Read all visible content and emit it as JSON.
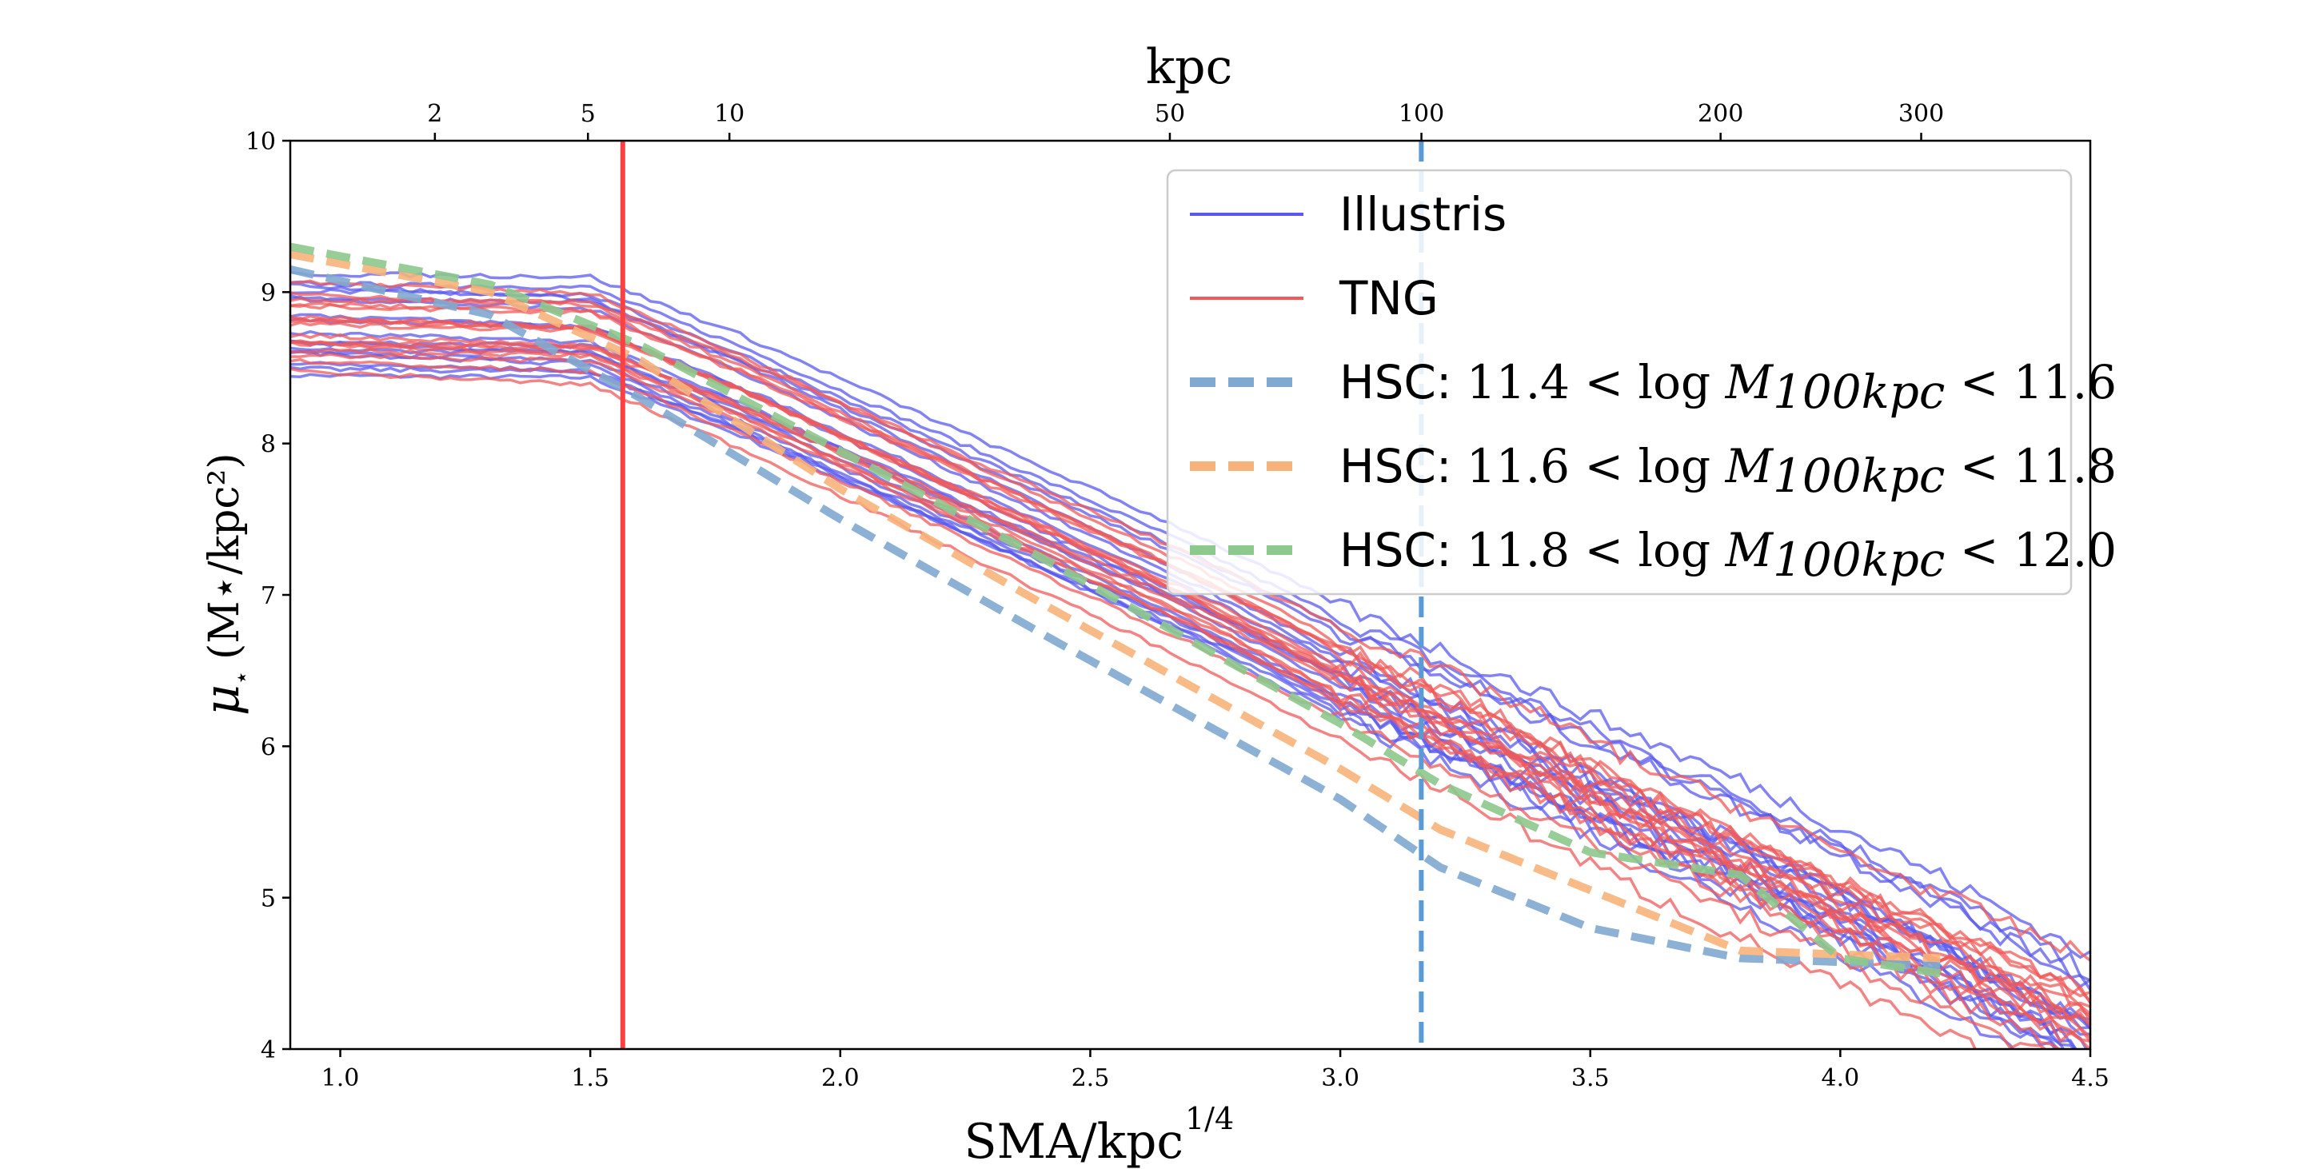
{
  "chart_data": {
    "type": "line",
    "title": "",
    "xlabel": "SMA/kpc",
    "xlabel_sup": "1/4",
    "ylabel": "μ",
    "ylabel_units": "(M⋆/kpc²)",
    "top_xlabel": "kpc",
    "xlim": [
      0.9,
      4.5
    ],
    "ylim": [
      4,
      10
    ],
    "x_ticks": [
      "1.0",
      "1.5",
      "2.0",
      "2.5",
      "3.0",
      "3.5",
      "4.0",
      "4.5"
    ],
    "y_ticks": [
      "4",
      "5",
      "6",
      "7",
      "8",
      "9",
      "10"
    ],
    "top_ticks": [
      {
        "label": "2",
        "kpc": 2
      },
      {
        "label": "5",
        "kpc": 5
      },
      {
        "label": "10",
        "kpc": 10
      },
      {
        "label": "50",
        "kpc": 50
      },
      {
        "label": "100",
        "kpc": 100
      },
      {
        "label": "200",
        "kpc": 200
      },
      {
        "label": "300",
        "kpc": 300
      }
    ],
    "vlines": [
      {
        "x": 1.565,
        "color": "#ff4040",
        "style": "solid"
      },
      {
        "x": 3.162,
        "color": "#5b9bd5",
        "style": "dashed"
      }
    ],
    "legend": {
      "position": "top-right",
      "entries": [
        {
          "text": "Illustris",
          "color": "#5a5af0",
          "style": "solid"
        },
        {
          "text": "TNG",
          "color": "#f05a5a",
          "style": "solid"
        },
        {
          "prefix": "HSC:",
          "lo": "11.4",
          "hi": "11.6",
          "color": "#7fa9d0",
          "style": "dashed"
        },
        {
          "prefix": "HSC:",
          "lo": "11.6",
          "hi": "11.8",
          "color": "#f7b37a",
          "style": "dashed"
        },
        {
          "prefix": "HSC:",
          "lo": "11.8",
          "hi": "12.0",
          "color": "#8dc88d",
          "style": "dashed"
        }
      ]
    },
    "series": [
      {
        "group": "HSC: 11.4 < log M100kpc < 11.6",
        "color": "#7fa9d0",
        "x": [
          0.9,
          1.3,
          1.6,
          2.0,
          2.4,
          2.7,
          3.0,
          3.2,
          3.5,
          3.8,
          4.2
        ],
        "y": [
          9.15,
          8.85,
          8.3,
          7.5,
          6.75,
          6.2,
          5.65,
          5.2,
          4.8,
          4.6,
          4.55
        ]
      },
      {
        "group": "HSC: 11.6 < log M100kpc < 11.8",
        "color": "#f7b37a",
        "x": [
          0.9,
          1.3,
          1.6,
          2.0,
          2.4,
          2.7,
          3.0,
          3.2,
          3.5,
          3.8,
          4.2
        ],
        "y": [
          9.25,
          9.0,
          8.55,
          7.7,
          6.95,
          6.4,
          5.85,
          5.45,
          5.05,
          4.65,
          4.6
        ]
      },
      {
        "group": "HSC: 11.8 < log M100kpc < 12.0",
        "color": "#8dc88d",
        "x": [
          0.9,
          1.3,
          1.6,
          2.0,
          2.4,
          2.7,
          3.0,
          3.2,
          3.5,
          3.8,
          4.0,
          4.2
        ],
        "y": [
          9.3,
          9.05,
          8.65,
          7.95,
          7.25,
          6.7,
          6.15,
          5.75,
          5.3,
          5.15,
          4.6,
          4.5
        ]
      }
    ],
    "simulation_bundles": [
      {
        "group": "Illustris",
        "color": "#5a5af0",
        "median_x": [
          0.9,
          1.5,
          1.8,
          2.1,
          2.4,
          2.7,
          3.0,
          3.3,
          3.6,
          3.9,
          4.2,
          4.5
        ],
        "median_y": [
          8.8,
          8.75,
          8.35,
          7.9,
          7.45,
          7.0,
          6.5,
          6.05,
          5.6,
          5.15,
          4.65,
          4.1
        ],
        "spread": 0.35,
        "count": 17
      },
      {
        "group": "TNG",
        "color": "#f05a5a",
        "median_x": [
          0.9,
          1.5,
          1.8,
          2.1,
          2.4,
          2.7,
          3.0,
          3.3,
          3.6,
          3.9,
          4.2,
          4.5
        ],
        "median_y": [
          8.75,
          8.7,
          8.3,
          7.85,
          7.4,
          6.95,
          6.45,
          6.0,
          5.5,
          5.05,
          4.6,
          4.15
        ],
        "spread": 0.38,
        "count": 17
      }
    ]
  }
}
